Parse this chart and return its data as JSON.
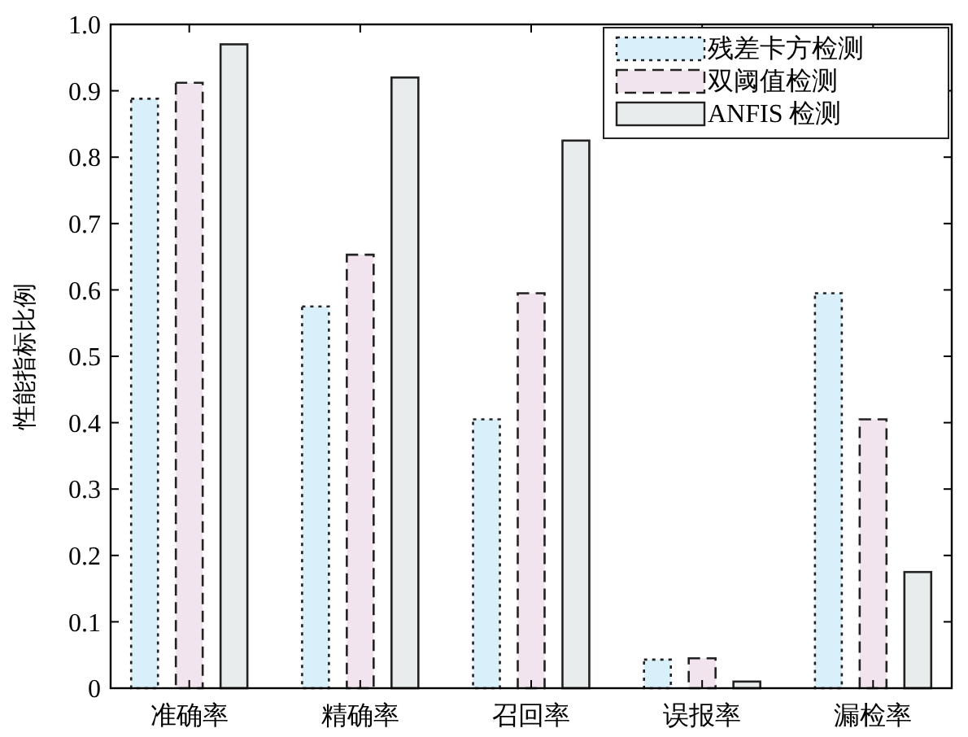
{
  "chart_data": {
    "type": "bar",
    "ylabel": "性能指标比例",
    "categories": [
      "准确率",
      "精确率",
      "召回率",
      "误报率",
      "漏检率"
    ],
    "series": [
      {
        "name": "残差卡方检测",
        "color": "#d9f0fb",
        "line_style": "dotted",
        "values": [
          0.888,
          0.575,
          0.405,
          0.043,
          0.595
        ]
      },
      {
        "name": "双阈值检测",
        "color": "#f1e4ef",
        "line_style": "dashed",
        "values": [
          0.912,
          0.653,
          0.595,
          0.045,
          0.405
        ]
      },
      {
        "name": "ANFIS 检测",
        "color": "#e8ecec",
        "line_style": "solid",
        "values": [
          0.97,
          0.92,
          0.825,
          0.01,
          0.175
        ]
      }
    ],
    "ylim": [
      0,
      1
    ],
    "yticks": [
      0,
      0.1,
      0.2,
      0.3,
      0.4,
      0.5,
      0.6,
      0.7,
      0.8,
      0.9,
      {
        "value": 1,
        "label": "1.0"
      }
    ],
    "legend": "top right"
  }
}
